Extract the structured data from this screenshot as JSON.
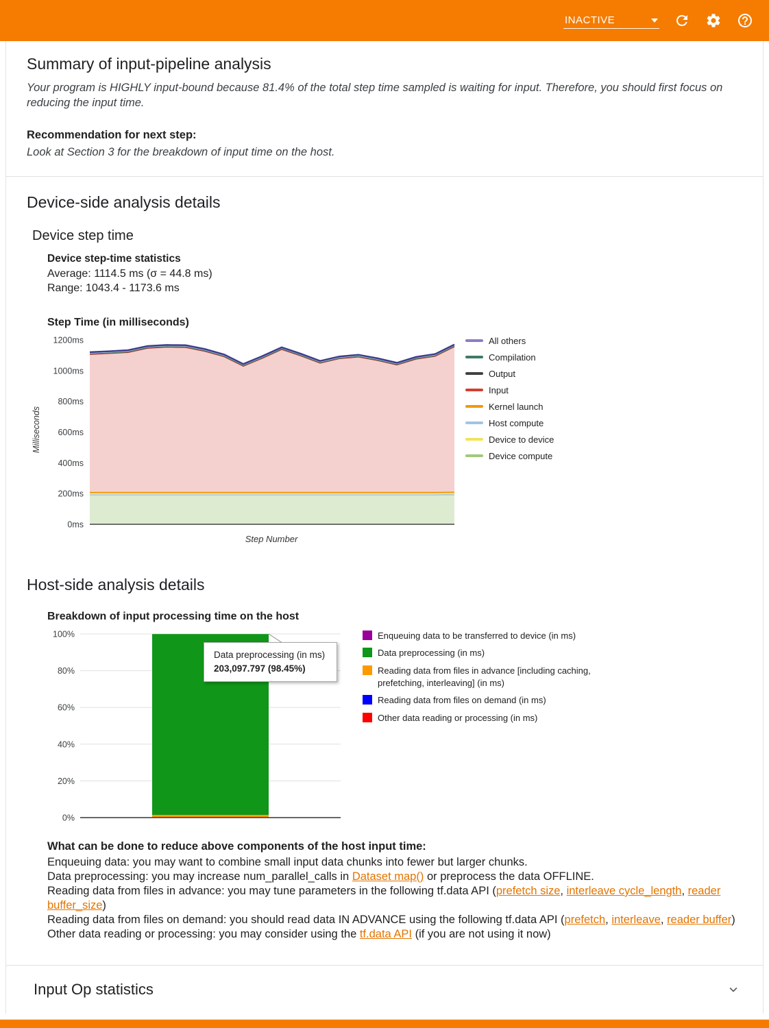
{
  "colors": {
    "accent_orange": "#f57c00",
    "link_orange": "#e37400",
    "divider_gray": "#e0e0e0",
    "bar_green": "#109618"
  },
  "topbar": {
    "status_label": "INACTIVE"
  },
  "summary": {
    "title": "Summary of input-pipeline analysis",
    "conclusion": "Your program is HIGHLY input-bound because 81.4% of the total step time sampled is waiting for input. Therefore, you should first focus on reducing the input time.",
    "recommendation_label": "Recommendation for next step:",
    "recommendation": "Look at Section 3 for the breakdown of input time on the host."
  },
  "device_section": {
    "title": "Device-side analysis details",
    "subtitle": "Device step time",
    "stats_title": "Device step-time statistics",
    "average": "Average: 1114.5 ms (σ = 44.8 ms)",
    "range": "Range: 1043.4 - 1173.6 ms"
  },
  "host_section": {
    "title": "Host-side analysis details",
    "tooltip": {
      "title": "Data preprocessing (in ms)",
      "value": "203,097.797 (98.45%)"
    },
    "advice_title": "What can be done to reduce above components of the host input time:",
    "advice_lines": [
      [
        {
          "t": "Enqueuing data: you may want to combine small input data chunks into fewer but larger chunks."
        }
      ],
      [
        {
          "t": "Data preprocessing: you may increase num_parallel_calls in "
        },
        {
          "t": "Dataset map()",
          "link": true
        },
        {
          "t": " or preprocess the data OFFLINE."
        }
      ],
      [
        {
          "t": "Reading data from files in advance: you may tune parameters in the following tf.data API ("
        },
        {
          "t": "prefetch size",
          "link": true
        },
        {
          "t": ", "
        },
        {
          "t": "interleave cycle_length",
          "link": true
        },
        {
          "t": ", "
        },
        {
          "t": "reader buffer_size",
          "link": true
        },
        {
          "t": ")"
        }
      ],
      [
        {
          "t": "Reading data from files on demand: you should read data IN ADVANCE using the following tf.data API ("
        },
        {
          "t": "prefetch",
          "link": true
        },
        {
          "t": ", "
        },
        {
          "t": "interleave",
          "link": true
        },
        {
          "t": ", "
        },
        {
          "t": "reader buffer",
          "link": true
        },
        {
          "t": ")"
        }
      ],
      [
        {
          "t": "Other data reading or processing: you may consider using the "
        },
        {
          "t": "tf.data API",
          "link": true
        },
        {
          "t": " (if you are not using it now)"
        }
      ]
    ]
  },
  "input_op_section": {
    "title": "Input Op statistics"
  },
  "chart_data": [
    {
      "type": "area",
      "stacked": true,
      "title": "Step Time (in milliseconds)",
      "xlabel": "Step Number",
      "ylabel": "Milliseconds",
      "ylim": [
        0,
        1200
      ],
      "yticks": [
        0,
        200,
        400,
        600,
        800,
        1000,
        1200
      ],
      "ytick_labels": [
        "0ms",
        "200ms",
        "400ms",
        "600ms",
        "800ms",
        "1000ms",
        "1200ms"
      ],
      "grid": false,
      "legend_position": "right",
      "series_bottom_to_top": [
        {
          "name": "Device compute",
          "color": "#9fc97c",
          "fill_opacity": 0.35,
          "line_width": 1.5,
          "values": [
            190,
            190,
            190,
            190,
            190,
            190,
            190,
            190,
            190,
            190,
            190,
            190,
            190,
            190,
            190,
            190,
            190,
            190,
            190,
            192
          ]
        },
        {
          "name": "Device to device",
          "color": "#f2e35a",
          "fill_opacity": 0.4,
          "line_width": 1,
          "values": [
            1,
            1,
            1,
            1,
            1,
            1,
            1,
            1,
            1,
            1,
            1,
            1,
            1,
            1,
            1,
            1,
            1,
            1,
            1,
            1
          ]
        },
        {
          "name": "Host compute",
          "color": "#9fc5e8",
          "fill_opacity": 0.35,
          "line_width": 1,
          "values": [
            2,
            2,
            2,
            2,
            2,
            2,
            2,
            2,
            2,
            2,
            2,
            2,
            2,
            2,
            2,
            2,
            2,
            2,
            2,
            2
          ]
        },
        {
          "name": "Kernel launch",
          "color": "#f29900",
          "fill_opacity": 0.22,
          "line_width": 2,
          "values": [
            13,
            13,
            13,
            13,
            13,
            13,
            13,
            13,
            13,
            13,
            13,
            13,
            13,
            13,
            13,
            13,
            13,
            13,
            13,
            13
          ]
        },
        {
          "name": "Input",
          "color": "#d23f31",
          "fill_opacity": 0.24,
          "line_width": 1.5,
          "values": [
            900,
            906,
            913,
            940,
            947,
            945,
            920,
            885,
            823,
            875,
            932,
            890,
            843,
            872,
            883,
            860,
            831,
            869,
            888,
            948
          ]
        },
        {
          "name": "Output",
          "color": "#424242",
          "fill_opacity": 0.2,
          "line_width": 1,
          "values": [
            2,
            2,
            2,
            2,
            2,
            2,
            2,
            2,
            2,
            2,
            2,
            2,
            2,
            2,
            2,
            2,
            2,
            2,
            2,
            2
          ]
        },
        {
          "name": "Compilation",
          "color": "#3d7a68",
          "fill_opacity": 0.2,
          "line_width": 1,
          "values": [
            1,
            1,
            1,
            1,
            1,
            1,
            1,
            1,
            1,
            1,
            1,
            1,
            1,
            1,
            1,
            1,
            1,
            1,
            1,
            1
          ]
        },
        {
          "name": "All others",
          "color": "#3c3c8f",
          "legend_color": "#8e7cc3",
          "fill_opacity": 0.25,
          "line_width": 2.5,
          "values": [
            11,
            11,
            11,
            11,
            11,
            11,
            11,
            11,
            11,
            11,
            11,
            11,
            11,
            11,
            11,
            11,
            11,
            11,
            11,
            11
          ]
        }
      ]
    },
    {
      "type": "bar",
      "stacked": true,
      "title": "Breakdown of input processing time on the host",
      "ylim": [
        0,
        100
      ],
      "yticks": [
        0,
        20,
        40,
        60,
        80,
        100
      ],
      "ytick_labels": [
        "0%",
        "20%",
        "40%",
        "60%",
        "80%",
        "100%"
      ],
      "grid": true,
      "legend_position": "right",
      "segments_bottom_to_top": [
        {
          "name": "Reading data from files in advance [including caching, prefetching, interleaving] (in ms)",
          "color": "#ff9900",
          "percent": 1.46
        },
        {
          "name": "Data preprocessing (in ms)",
          "color": "#109618",
          "percent": 98.45,
          "value_ms": "203,097.797"
        },
        {
          "name": "Enqueuing data to be transferred to device (in ms)",
          "color": "#990099",
          "percent": 0.05
        },
        {
          "name": "Reading data from files on demand (in ms)",
          "color": "#0000ff",
          "percent": 0.02
        },
        {
          "name": "Other data reading or processing (in ms)",
          "color": "#ff0000",
          "percent": 0.02
        }
      ],
      "legend_top_to_bottom": [
        {
          "label": "Enqueuing data to be transferred to device (in ms)",
          "color": "#990099"
        },
        {
          "label": "Data preprocessing (in ms)",
          "color": "#109618"
        },
        {
          "label": "Reading data from files in advance [including caching, prefetching, interleaving] (in ms)",
          "color": "#ff9900"
        },
        {
          "label": "Reading data from files on demand (in ms)",
          "color": "#0000ff"
        },
        {
          "label": "Other data reading or processing (in ms)",
          "color": "#ff0000"
        }
      ]
    }
  ]
}
